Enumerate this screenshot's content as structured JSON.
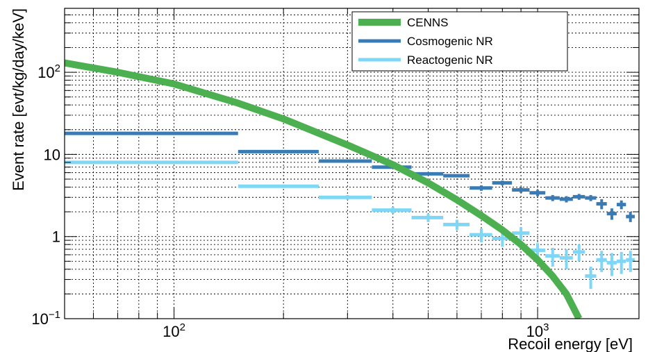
{
  "chart_data": {
    "type": "line",
    "title": "",
    "xlabel": "Recoil energy [eV]",
    "ylabel": "Event rate [evt/kg/day/keV]",
    "x_scale": "log",
    "y_scale": "log",
    "xlim": [
      50,
      1900
    ],
    "ylim": [
      0.1,
      600
    ],
    "grid": true,
    "legend_position": "top-right",
    "x_tick_labels": [
      {
        "value": 100,
        "base": "10",
        "exp": "2"
      },
      {
        "value": 1000,
        "base": "10",
        "exp": "3"
      }
    ],
    "y_tick_labels": [
      {
        "value": 0.1,
        "base": "10",
        "exp": "−1"
      },
      {
        "value": 1,
        "base": "1",
        "exp": ""
      },
      {
        "value": 10,
        "base": "10",
        "exp": ""
      },
      {
        "value": 100,
        "base": "10",
        "exp": "2"
      }
    ],
    "series": [
      {
        "name": "CENNS",
        "kind": "curve",
        "color": "#4caf50",
        "x": [
          50,
          70,
          100,
          150,
          200,
          300,
          400,
          500,
          600,
          700,
          800,
          900,
          1000,
          1100,
          1200,
          1300
        ],
        "y": [
          130,
          100,
          72,
          42,
          27,
          13,
          7.5,
          4.5,
          2.8,
          1.8,
          1.2,
          0.8,
          0.52,
          0.33,
          0.2,
          0.1
        ]
      },
      {
        "name": "Cosmogenic NR",
        "kind": "histogram",
        "color": "#3a7bb4",
        "bins": [
          {
            "lo": 50,
            "hi": 150,
            "y": 18,
            "err": 0
          },
          {
            "lo": 150,
            "hi": 250,
            "y": 10.8,
            "err": 0
          },
          {
            "lo": 250,
            "hi": 350,
            "y": 8.3,
            "err": 0
          },
          {
            "lo": 350,
            "hi": 450,
            "y": 7.0,
            "err": 0.2
          },
          {
            "lo": 450,
            "hi": 550,
            "y": 5.8,
            "err": 0.2
          },
          {
            "lo": 550,
            "hi": 650,
            "y": 5.5,
            "err": 0.2
          },
          {
            "lo": 650,
            "hi": 750,
            "y": 3.9,
            "err": 0.3
          },
          {
            "lo": 750,
            "hi": 850,
            "y": 4.5,
            "err": 0.3
          },
          {
            "lo": 850,
            "hi": 950,
            "y": 3.7,
            "err": 0.3
          },
          {
            "lo": 950,
            "hi": 1050,
            "y": 3.4,
            "err": 0.3
          },
          {
            "lo": 1050,
            "hi": 1150,
            "y": 2.95,
            "err": 0.25
          },
          {
            "lo": 1150,
            "hi": 1250,
            "y": 2.85,
            "err": 0.25
          },
          {
            "lo": 1250,
            "hi": 1350,
            "y": 3.05,
            "err": 0.25
          },
          {
            "lo": 1350,
            "hi": 1450,
            "y": 2.95,
            "err": 0.25
          },
          {
            "lo": 1450,
            "hi": 1550,
            "y": 2.5,
            "err": 0.35
          },
          {
            "lo": 1550,
            "hi": 1650,
            "y": 1.9,
            "err": 0.3
          },
          {
            "lo": 1650,
            "hi": 1750,
            "y": 2.45,
            "err": 0.3
          },
          {
            "lo": 1750,
            "hi": 1850,
            "y": 1.75,
            "err": 0.25
          }
        ]
      },
      {
        "name": "Reactogenic NR",
        "kind": "histogram",
        "color": "#7fd6f5",
        "bins": [
          {
            "lo": 50,
            "hi": 150,
            "y": 8.0,
            "err": 0
          },
          {
            "lo": 150,
            "hi": 250,
            "y": 4.1,
            "err": 0.2
          },
          {
            "lo": 250,
            "hi": 350,
            "y": 3.0,
            "err": 0.2
          },
          {
            "lo": 350,
            "hi": 450,
            "y": 2.1,
            "err": 0.2
          },
          {
            "lo": 450,
            "hi": 550,
            "y": 1.7,
            "err": 0.2
          },
          {
            "lo": 550,
            "hi": 650,
            "y": 1.4,
            "err": 0.2
          },
          {
            "lo": 650,
            "hi": 750,
            "y": 1.05,
            "err": 0.2
          },
          {
            "lo": 750,
            "hi": 850,
            "y": 0.95,
            "err": 0.2
          },
          {
            "lo": 850,
            "hi": 950,
            "y": 1.1,
            "err": 0.2
          },
          {
            "lo": 950,
            "hi": 1050,
            "y": 0.68,
            "err": 0.15
          },
          {
            "lo": 1050,
            "hi": 1150,
            "y": 0.58,
            "err": 0.15
          },
          {
            "lo": 1150,
            "hi": 1250,
            "y": 0.55,
            "err": 0.15
          },
          {
            "lo": 1250,
            "hi": 1350,
            "y": 0.65,
            "err": 0.15
          },
          {
            "lo": 1350,
            "hi": 1450,
            "y": 0.33,
            "err": 0.1
          },
          {
            "lo": 1450,
            "hi": 1550,
            "y": 0.52,
            "err": 0.15
          },
          {
            "lo": 1550,
            "hi": 1650,
            "y": 0.48,
            "err": 0.15
          },
          {
            "lo": 1650,
            "hi": 1750,
            "y": 0.5,
            "err": 0.15
          },
          {
            "lo": 1750,
            "hi": 1850,
            "y": 0.52,
            "err": 0.15
          }
        ]
      }
    ]
  }
}
